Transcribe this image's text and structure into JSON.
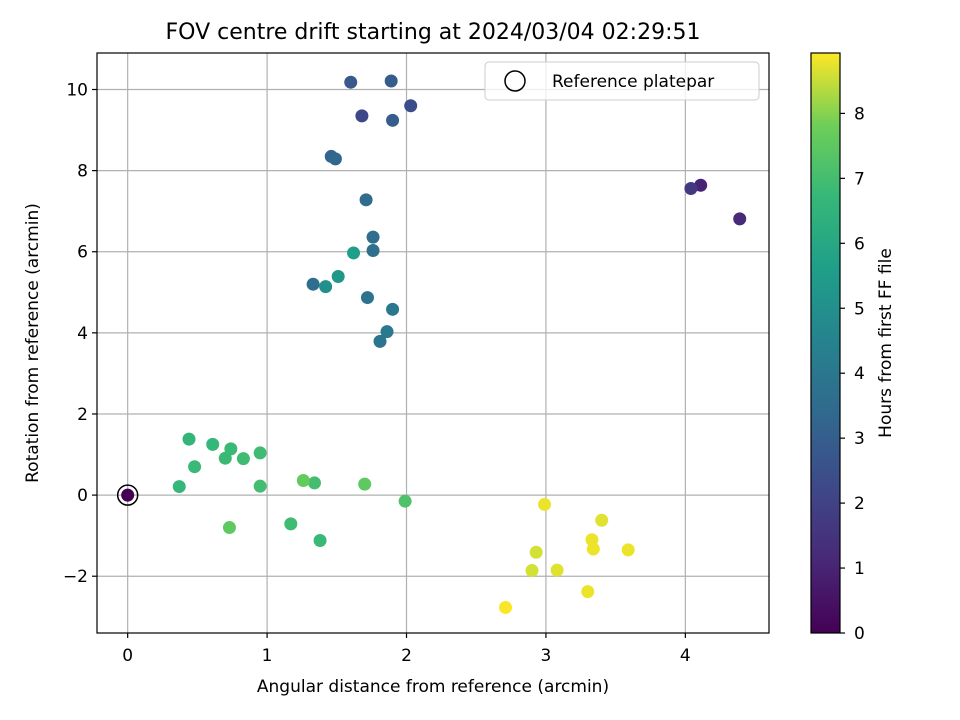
{
  "chart_data": {
    "type": "scatter",
    "title": "FOV centre drift starting at 2024/03/04 02:29:51",
    "xlabel": "Angular distance from reference (arcmin)",
    "ylabel": "Rotation from reference (arcmin)",
    "xlim": [
      -0.22,
      4.6
    ],
    "ylim": [
      -3.4,
      10.9
    ],
    "xticks": [
      0,
      1,
      2,
      3,
      4
    ],
    "yticks": [
      -2,
      0,
      2,
      4,
      6,
      8,
      10
    ],
    "ytick_labels": [
      "−2",
      "0",
      "2",
      "4",
      "6",
      "8",
      "10"
    ],
    "grid": true,
    "legend": {
      "placement": "upper right",
      "entries": [
        "Reference platepar"
      ]
    },
    "colorbar": {
      "label": "Hours from first FF file",
      "range": [
        0,
        8.93
      ],
      "ticks": [
        0,
        1,
        2,
        3,
        4,
        5,
        6,
        7,
        8
      ],
      "colormap": "viridis"
    },
    "reference_point": {
      "x": 0,
      "y": 0
    },
    "points": [
      {
        "x": 0.0,
        "y": 0.0,
        "h": 0.0
      },
      {
        "x": 4.11,
        "y": 7.64,
        "h": 1.0
      },
      {
        "x": 4.39,
        "y": 6.81,
        "h": 1.2
      },
      {
        "x": 4.04,
        "y": 7.56,
        "h": 1.7
      },
      {
        "x": 1.68,
        "y": 9.35,
        "h": 2.2
      },
      {
        "x": 2.03,
        "y": 9.6,
        "h": 2.4
      },
      {
        "x": 1.6,
        "y": 10.18,
        "h": 2.8
      },
      {
        "x": 1.89,
        "y": 10.21,
        "h": 2.9
      },
      {
        "x": 1.9,
        "y": 9.24,
        "h": 3.0
      },
      {
        "x": 1.46,
        "y": 8.35,
        "h": 3.2
      },
      {
        "x": 1.49,
        "y": 8.29,
        "h": 3.3
      },
      {
        "x": 1.71,
        "y": 7.28,
        "h": 3.5
      },
      {
        "x": 1.76,
        "y": 6.36,
        "h": 3.6
      },
      {
        "x": 1.76,
        "y": 6.03,
        "h": 3.7
      },
      {
        "x": 1.33,
        "y": 5.2,
        "h": 3.6
      },
      {
        "x": 1.72,
        "y": 4.87,
        "h": 3.8
      },
      {
        "x": 1.9,
        "y": 4.58,
        "h": 4.0
      },
      {
        "x": 1.86,
        "y": 4.03,
        "h": 4.1
      },
      {
        "x": 1.81,
        "y": 3.79,
        "h": 3.9
      },
      {
        "x": 1.42,
        "y": 5.14,
        "h": 5.0
      },
      {
        "x": 1.51,
        "y": 5.39,
        "h": 5.3
      },
      {
        "x": 1.62,
        "y": 5.97,
        "h": 5.6
      },
      {
        "x": 0.44,
        "y": 1.38,
        "h": 6.6
      },
      {
        "x": 0.61,
        "y": 1.25,
        "h": 6.7
      },
      {
        "x": 0.74,
        "y": 1.14,
        "h": 6.8
      },
      {
        "x": 0.95,
        "y": 1.04,
        "h": 6.9
      },
      {
        "x": 0.48,
        "y": 0.7,
        "h": 6.8
      },
      {
        "x": 0.7,
        "y": 0.91,
        "h": 6.8
      },
      {
        "x": 0.83,
        "y": 0.9,
        "h": 6.9
      },
      {
        "x": 0.37,
        "y": 0.21,
        "h": 6.7
      },
      {
        "x": 0.95,
        "y": 0.22,
        "h": 7.0
      },
      {
        "x": 1.34,
        "y": 0.3,
        "h": 7.0
      },
      {
        "x": 1.17,
        "y": -0.71,
        "h": 6.9
      },
      {
        "x": 1.38,
        "y": -1.12,
        "h": 6.8
      },
      {
        "x": 0.73,
        "y": -0.8,
        "h": 7.5
      },
      {
        "x": 1.26,
        "y": 0.36,
        "h": 7.6
      },
      {
        "x": 1.7,
        "y": 0.27,
        "h": 7.5
      },
      {
        "x": 1.99,
        "y": -0.15,
        "h": 7.2
      },
      {
        "x": 2.99,
        "y": -0.23,
        "h": 8.8
      },
      {
        "x": 3.4,
        "y": -0.62,
        "h": 8.7
      },
      {
        "x": 3.33,
        "y": -1.1,
        "h": 8.8
      },
      {
        "x": 3.34,
        "y": -1.33,
        "h": 8.8
      },
      {
        "x": 3.59,
        "y": -1.35,
        "h": 8.8
      },
      {
        "x": 2.93,
        "y": -1.41,
        "h": 8.6
      },
      {
        "x": 2.9,
        "y": -1.86,
        "h": 8.6
      },
      {
        "x": 3.08,
        "y": -1.85,
        "h": 8.7
      },
      {
        "x": 3.3,
        "y": -2.38,
        "h": 8.8
      },
      {
        "x": 2.71,
        "y": -2.77,
        "h": 8.9
      }
    ]
  }
}
